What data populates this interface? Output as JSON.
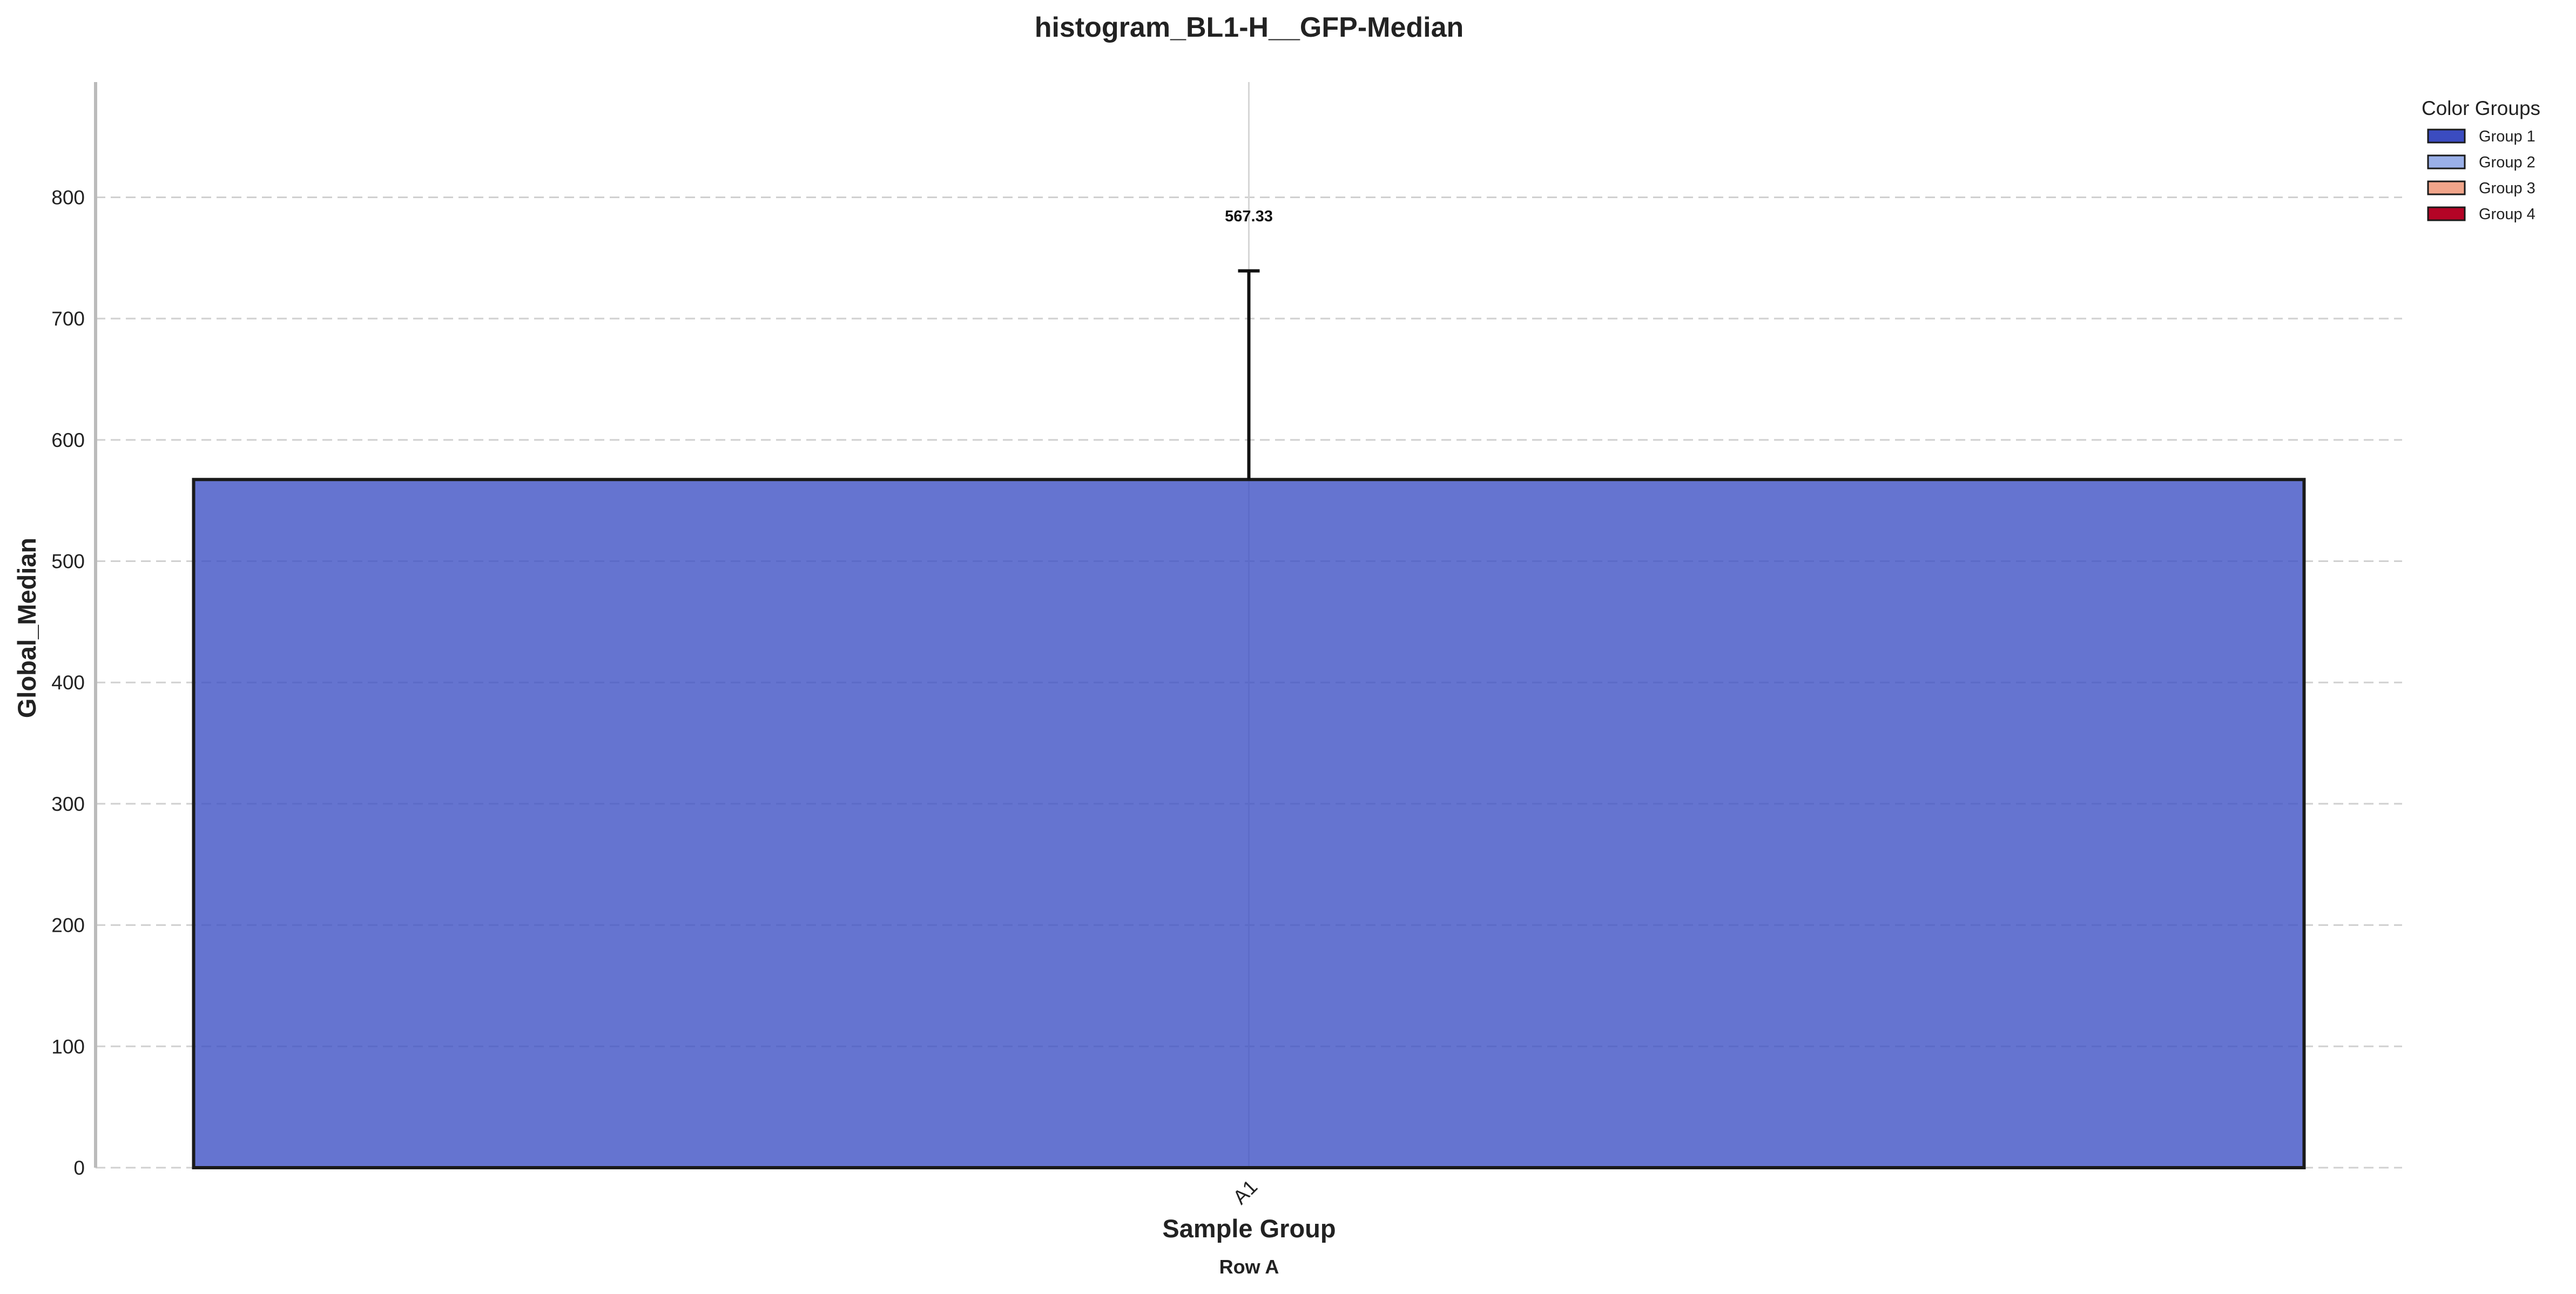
{
  "chart_data": {
    "type": "bar",
    "title": "histogram_BL1-H__GFP-Median",
    "xlabel": "Sample Group",
    "x_sublabel": "Row A",
    "ylabel": "Global_Median",
    "categories": [
      "A1"
    ],
    "values": [
      567.33
    ],
    "errors": [
      172
    ],
    "value_labels": [
      "567.33"
    ],
    "ylim": [
      0,
      895
    ],
    "yticks": [
      0,
      100,
      200,
      300,
      400,
      500,
      600,
      700,
      800
    ],
    "grid": true,
    "bar_color": "#3f51c4",
    "legend": {
      "title": "Color Groups",
      "placement": "top-right",
      "items": [
        {
          "label": "Group 1",
          "color": "#3b4cc0"
        },
        {
          "label": "Group 2",
          "color": "#9ab0e8"
        },
        {
          "label": "Group 3",
          "color": "#f1a58a"
        },
        {
          "label": "Group 4",
          "color": "#b40426"
        }
      ]
    }
  }
}
